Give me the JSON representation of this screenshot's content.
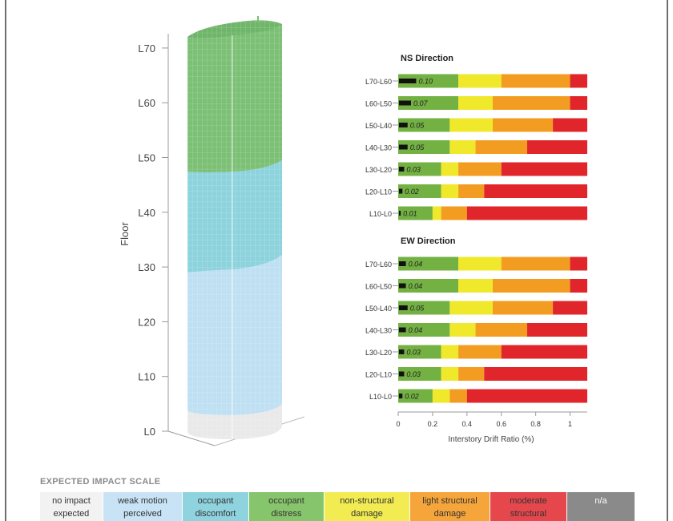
{
  "building": {
    "ylabel": "Floor",
    "floor_ticks": [
      "L0",
      "L10",
      "L20",
      "L30",
      "L40",
      "L50",
      "L60",
      "L70"
    ]
  },
  "chart_data": [
    {
      "type": "bar",
      "title": "NS Direction",
      "categories": [
        "L70-L60",
        "L60-L50",
        "L50-L40",
        "L40-L30",
        "L30-L20",
        "L20-L10",
        "L10-L0"
      ],
      "values": [
        0.1,
        0.07,
        0.05,
        0.05,
        0.03,
        0.02,
        0.01
      ],
      "value_labels": [
        "0.10",
        "0.07",
        "0.05",
        "0.05",
        "0.03",
        "0.02",
        "0.01"
      ],
      "thresholds": [
        [
          0.35,
          0.6,
          1.0
        ],
        [
          0.35,
          0.55,
          1.0
        ],
        [
          0.3,
          0.55,
          0.9
        ],
        [
          0.3,
          0.45,
          0.75
        ],
        [
          0.25,
          0.35,
          0.6
        ],
        [
          0.25,
          0.35,
          0.5
        ],
        [
          0.2,
          0.25,
          0.4
        ]
      ],
      "xlim": [
        0,
        1.1
      ]
    },
    {
      "type": "bar",
      "title": "EW Direction",
      "categories": [
        "L70-L60",
        "L60-L50",
        "L50-L40",
        "L40-L30",
        "L30-L20",
        "L20-L10",
        "L10-L0"
      ],
      "values": [
        0.04,
        0.04,
        0.05,
        0.04,
        0.03,
        0.03,
        0.02
      ],
      "value_labels": [
        "0.04",
        "0.04",
        "0.05",
        "0.04",
        "0.03",
        "0.03",
        "0.02"
      ],
      "thresholds": [
        [
          0.35,
          0.6,
          1.0
        ],
        [
          0.35,
          0.55,
          1.0
        ],
        [
          0.3,
          0.55,
          0.9
        ],
        [
          0.3,
          0.45,
          0.75
        ],
        [
          0.25,
          0.35,
          0.6
        ],
        [
          0.25,
          0.35,
          0.5
        ],
        [
          0.2,
          0.3,
          0.4
        ]
      ],
      "xlim": [
        0,
        1.1
      ],
      "xticks": [
        0,
        0.2,
        0.4,
        0.6,
        0.8,
        1
      ],
      "xtick_labels": [
        "0",
        "0.2",
        "0.4",
        "0.6",
        "0.8",
        "1"
      ],
      "xlabel": "Interstory Drift Ratio (%)"
    }
  ],
  "band_colors": [
    "#73b143",
    "#f0e82b",
    "#f39c22",
    "#e0262b"
  ],
  "scale": {
    "title": "EXPECTED IMPACT SCALE",
    "items": [
      {
        "label": "no impact\nexpected",
        "color": "#f2f2f2"
      },
      {
        "label": "weak motion\nperceived",
        "color": "#c7e3f5"
      },
      {
        "label": "occupant\ndiscomfort",
        "color": "#8fd3de"
      },
      {
        "label": "occupant\ndistress",
        "color": "#86c56c"
      },
      {
        "label": "non-structural\ndamage",
        "color": "#f2ec52"
      },
      {
        "label": "light structural\ndamage",
        "color": "#f5a53a"
      },
      {
        "label": "moderate\nstructural",
        "color": "#e5474d"
      },
      {
        "label": "n/a",
        "color": "#8a8a8a"
      }
    ]
  }
}
